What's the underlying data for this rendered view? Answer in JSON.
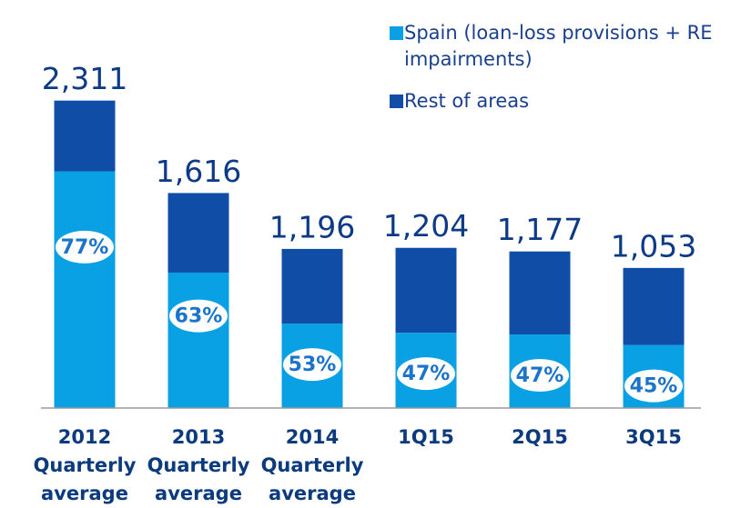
{
  "chart_data": {
    "type": "stacked_bar",
    "categories": [
      "2012 Quarterly average",
      "2013 Quarterly average",
      "2014 Quarterly average",
      "1Q15",
      "2Q15",
      "3Q15"
    ],
    "series": [
      {
        "name": "Spain (loan-loss provisions + RE impairments)",
        "color": "#0aa0e4",
        "values": [
          1779,
          1018,
          634,
          566,
          553,
          474
        ]
      },
      {
        "name": "Rest of areas",
        "color": "#0f4da6",
        "values": [
          532,
          598,
          562,
          638,
          624,
          579
        ]
      }
    ],
    "total_labels": [
      "2,311",
      "1,616",
      "1,196",
      "1,204",
      "1,177",
      "1,053"
    ],
    "share_labels": [
      "77%",
      "63%",
      "53%",
      "47%",
      "47%",
      "45%"
    ],
    "ylim": [
      0,
      2500
    ]
  }
}
